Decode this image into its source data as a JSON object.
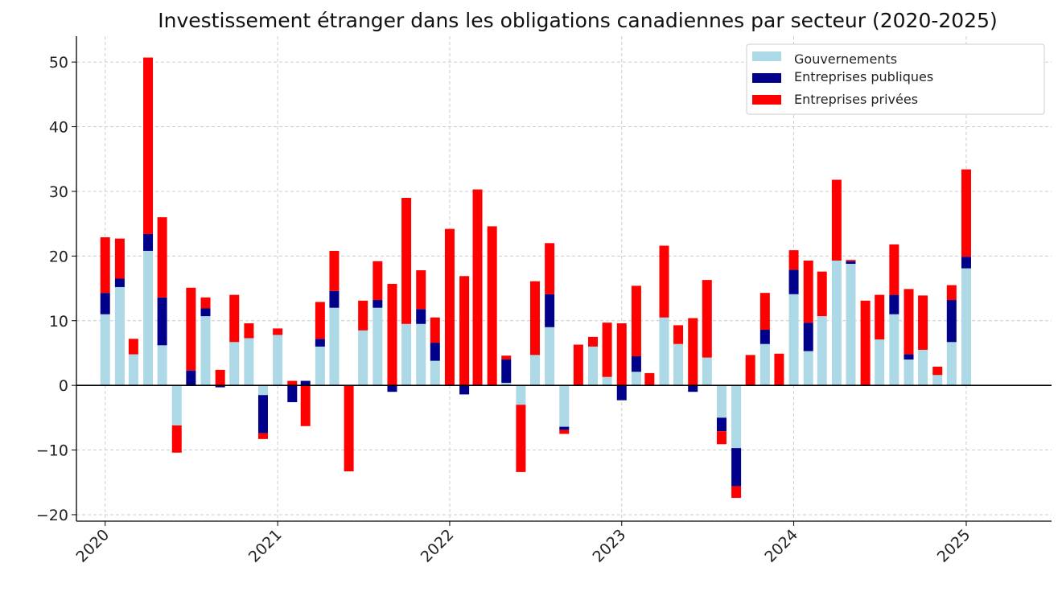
{
  "chart_data": {
    "type": "bar",
    "stacked": true,
    "title": "Investissement étranger dans les obligations canadiennes par secteur (2020-2025)",
    "xlabel": "",
    "ylabel": "",
    "ylim": [
      -21,
      54
    ],
    "xlim": [
      "2019-11-01",
      "2025-07-01"
    ],
    "yticks": [
      -20,
      -10,
      0,
      10,
      20,
      30,
      40,
      50
    ],
    "ytick_labels": [
      "−20",
      "−10",
      "0",
      "10",
      "20",
      "30",
      "40",
      "50"
    ],
    "xticks": [
      "2020-01-01",
      "2021-01-01",
      "2022-01-01",
      "2023-01-01",
      "2024-01-01",
      "2025-01-01"
    ],
    "xtick_labels": [
      "2020",
      "2021",
      "2022",
      "2023",
      "2024",
      "2025"
    ],
    "grid": true,
    "legend_position": "top-right",
    "dates": [
      "2020-01",
      "2020-02",
      "2020-03",
      "2020-04",
      "2020-05",
      "2020-06",
      "2020-07",
      "2020-08",
      "2020-09",
      "2020-10",
      "2020-11",
      "2020-12",
      "2021-01",
      "2021-02",
      "2021-03",
      "2021-04",
      "2021-05",
      "2021-06",
      "2021-07",
      "2021-08",
      "2021-09",
      "2021-10",
      "2021-11",
      "2021-12",
      "2022-01",
      "2022-02",
      "2022-03",
      "2022-04",
      "2022-05",
      "2022-06",
      "2022-07",
      "2022-08",
      "2022-09",
      "2022-10",
      "2022-11",
      "2022-12",
      "2023-01",
      "2023-02",
      "2023-03",
      "2023-04",
      "2023-05",
      "2023-06",
      "2023-07",
      "2023-08",
      "2023-09",
      "2023-10",
      "2023-11",
      "2023-12",
      "2024-01",
      "2024-02",
      "2024-03",
      "2024-04",
      "2024-05",
      "2024-06",
      "2024-07",
      "2024-08",
      "2024-09",
      "2024-10",
      "2024-11",
      "2024-12",
      "2025-01"
    ],
    "series": [
      {
        "name": "Gouvernements",
        "color": "#add8e6",
        "values": [
          11,
          15.2,
          4.8,
          20.8,
          6.2,
          -6.2,
          0,
          10.7,
          0,
          6.7,
          7.3,
          -1.5,
          7.8,
          0,
          0,
          6,
          12,
          0,
          8.5,
          12,
          0,
          9.5,
          9.5,
          3.8,
          0,
          0,
          0,
          0,
          0.4,
          -3,
          4.7,
          9,
          -6.4,
          0,
          6,
          1.3,
          0,
          2.1,
          0,
          10.5,
          6.4,
          0,
          4.3,
          -5,
          -9.7,
          0,
          6.4,
          0,
          14.1,
          5.3,
          10.7,
          19.3,
          18.8,
          0,
          7.1,
          11,
          4,
          5.5,
          1.6,
          6.7,
          18.1
        ]
      },
      {
        "name": "Entreprises publiques",
        "color": "#00008b",
        "values": [
          3.3,
          1.3,
          0,
          2.6,
          7.4,
          0,
          2.3,
          1.2,
          -0.3,
          0,
          0,
          -5.9,
          0,
          -2.6,
          0.7,
          1.2,
          2.6,
          0,
          0,
          1.2,
          -1,
          0,
          2.3,
          2.8,
          0,
          -1.4,
          0,
          0,
          3.6,
          0,
          0,
          5.1,
          -0.5,
          0,
          0,
          0,
          -2.3,
          2.4,
          0,
          0,
          0,
          -1,
          0,
          -2.1,
          -5.9,
          0,
          2.2,
          0,
          3.8,
          4.4,
          0,
          0,
          0.4,
          0,
          0,
          3,
          0.8,
          0,
          0,
          6.5,
          1.8
        ]
      },
      {
        "name": "Entreprises privées",
        "color": "#ff0000",
        "values": [
          8.6,
          6.2,
          2.4,
          27.3,
          12.4,
          -4.2,
          12.8,
          1.7,
          2.4,
          7.3,
          2.3,
          -0.9,
          1,
          0.7,
          -6.3,
          5.7,
          6.2,
          -13.3,
          4.6,
          6,
          15.7,
          19.5,
          6,
          3.9,
          24.2,
          16.9,
          30.3,
          24.6,
          0.6,
          -10.4,
          11.4,
          7.9,
          -0.6,
          6.3,
          1.5,
          8.4,
          9.6,
          10.9,
          1.9,
          11.1,
          2.9,
          10.4,
          12,
          -2,
          -1.8,
          4.7,
          5.7,
          4.9,
          3,
          9.6,
          6.9,
          12.5,
          0.2,
          13.1,
          6.9,
          7.8,
          10.1,
          8.4,
          1.3,
          2.3,
          13.5
        ]
      }
    ]
  }
}
